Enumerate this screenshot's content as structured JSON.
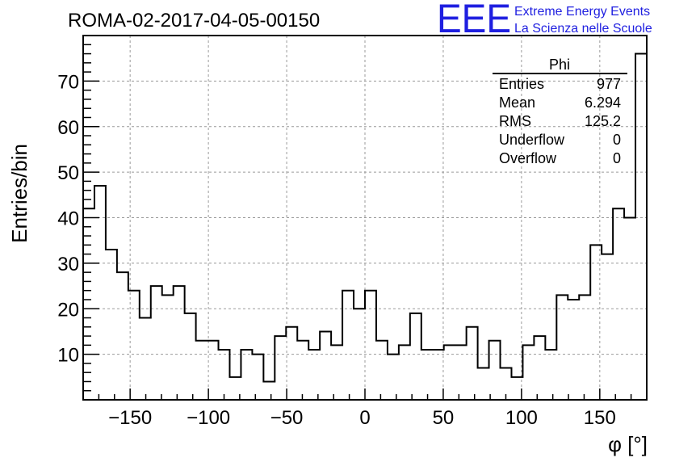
{
  "chart_data": {
    "type": "bar",
    "title": "ROMA-02-2017-04-05-00150",
    "xlabel": "φ [°]",
    "ylabel": "Entries/bin",
    "xlim": [
      -180,
      180
    ],
    "ylim": [
      0,
      80
    ],
    "x_ticks": [
      -150,
      -100,
      -50,
      0,
      50,
      100,
      150
    ],
    "x_tick_labels": [
      "−150",
      "−100",
      "−50",
      "0",
      "50",
      "100",
      "150"
    ],
    "y_ticks": [
      10,
      20,
      30,
      40,
      50,
      60,
      70
    ],
    "grid": true,
    "bin_width": 7.2,
    "bin_edges_start": -180,
    "values": [
      42,
      47,
      33,
      28,
      24,
      18,
      25,
      23,
      25,
      19,
      13,
      13,
      11,
      5,
      11,
      10,
      4,
      14,
      16,
      13,
      11,
      15,
      12,
      24,
      20,
      24,
      13,
      10,
      12,
      19,
      11,
      11,
      12,
      12,
      16,
      7,
      13,
      7,
      5,
      12,
      14,
      11,
      23,
      22,
      23,
      34,
      32,
      42,
      40,
      76
    ]
  },
  "stats_box": {
    "title": "Phi",
    "rows": [
      {
        "label": "Entries",
        "value": "977"
      },
      {
        "label": "Mean",
        "value": "6.294"
      },
      {
        "label": "RMS",
        "value": "125.2"
      },
      {
        "label": "Underflow",
        "value": "0"
      },
      {
        "label": "Overflow",
        "value": "0"
      }
    ]
  },
  "logo": {
    "mark": "EEE",
    "line1": "Extreme Energy Events",
    "line2": "La Scienza nelle Scuole",
    "color": "#1f1fe0"
  }
}
